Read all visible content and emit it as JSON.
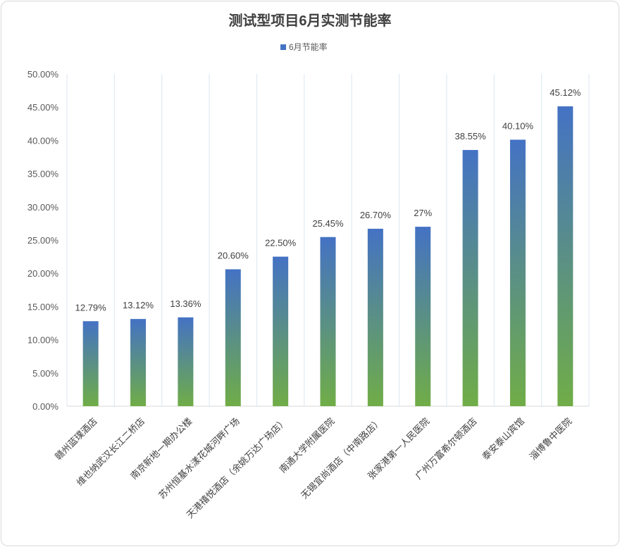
{
  "chart_data": {
    "type": "bar",
    "title": "测试型项目6月实测节能率",
    "legend": {
      "entries": [
        "6月节能率"
      ],
      "position": "top"
    },
    "categories": [
      "赣州蓝璞酒店",
      "维也纳武汉长江二桥店",
      "南京新地一期办公楼",
      "苏州恒基水漾花城河畔广场",
      "天港禧悦酒店（余姚万达广场店）",
      "南通大学附属医院",
      "无锡宜尚酒店（中南路店）",
      "张家港第一人民医院",
      "广州万富希尔顿酒店",
      "泰安泰山宾馆",
      "淄博鲁中医院"
    ],
    "series": [
      {
        "name": "6月节能率",
        "values": [
          12.79,
          13.12,
          13.36,
          20.6,
          22.5,
          25.45,
          26.7,
          27,
          38.55,
          40.1,
          45.12
        ]
      }
    ],
    "data_labels": [
      "12.79%",
      "13.12%",
      "13.36%",
      "20.60%",
      "22.50%",
      "25.45%",
      "26.70%",
      "27%",
      "38.55%",
      "40.10%",
      "45.12%"
    ],
    "ylim": [
      0,
      50
    ],
    "yticks": [
      "0.00%",
      "5.00%",
      "10.00%",
      "15.00%",
      "20.00%",
      "25.00%",
      "30.00%",
      "35.00%",
      "40.00%",
      "45.00%",
      "50.00%"
    ],
    "grid": "vertical category separators",
    "colors": {
      "bar_top": "#4472c4",
      "bar_bottom": "#70ad47",
      "legend_marker": "#4472c4"
    }
  }
}
